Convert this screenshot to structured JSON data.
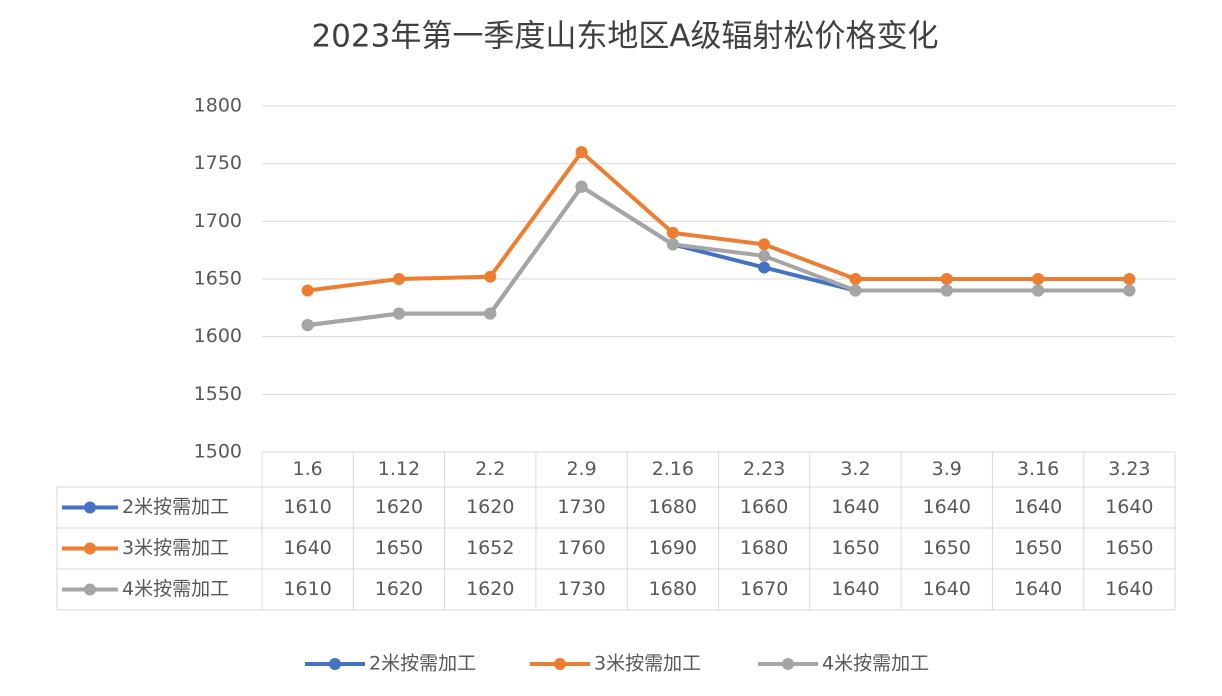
{
  "chart_data": {
    "type": "line",
    "title": "2023年第一季度山东地区A级辐射松价格变化",
    "categories": [
      "1.6",
      "1.12",
      "2.2",
      "2.9",
      "2.16",
      "2.23",
      "3.2",
      "3.9",
      "3.16",
      "3.23"
    ],
    "series": [
      {
        "name": "2米按需加工",
        "color": "#4472c4",
        "values": [
          1610,
          1620,
          1620,
          1730,
          1680,
          1660,
          1640,
          1640,
          1640,
          1640
        ]
      },
      {
        "name": "3米按需加工",
        "color": "#ed7d31",
        "values": [
          1640,
          1650,
          1652,
          1760,
          1690,
          1680,
          1650,
          1650,
          1650,
          1650
        ]
      },
      {
        "name": "4米按需加工",
        "color": "#a5a5a5",
        "values": [
          1610,
          1620,
          1620,
          1730,
          1680,
          1670,
          1640,
          1640,
          1640,
          1640
        ]
      }
    ],
    "ylim": [
      1500,
      1800
    ],
    "yticks": [
      1500,
      1550,
      1600,
      1650,
      1700,
      1750,
      1800
    ],
    "grid": true
  }
}
